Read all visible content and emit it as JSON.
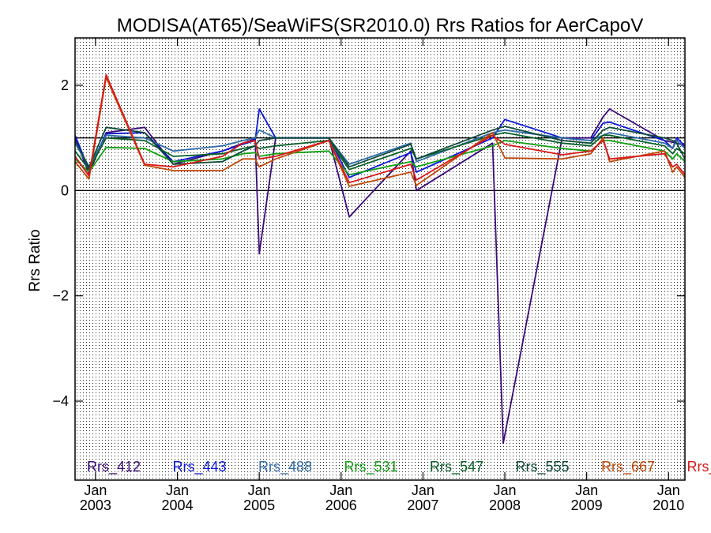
{
  "chart_data": {
    "type": "line",
    "title": "MODISA(AT65)/SeaWiFS(SR2010.0)  Rrs Ratios for AerCapoV",
    "xlabel": "",
    "ylabel": "Rrs Ratio",
    "xlim": [
      2002.75,
      2010.2
    ],
    "ylim": [
      -5.5,
      2.9
    ],
    "ref_lines": [
      0,
      1
    ],
    "grid": "dotted",
    "legend_position": "bottom",
    "x_ticks": [
      {
        "value": 2003.0,
        "label": "Jan\n2003"
      },
      {
        "value": 2004.0,
        "label": "Jan\n2004"
      },
      {
        "value": 2005.0,
        "label": "Jan\n2005"
      },
      {
        "value": 2006.0,
        "label": "Jan\n2006"
      },
      {
        "value": 2007.0,
        "label": "Jan\n2007"
      },
      {
        "value": 2008.0,
        "label": "Jan\n2008"
      },
      {
        "value": 2009.0,
        "label": "Jan\n2009"
      },
      {
        "value": 2010.0,
        "label": "Jan\n2010"
      }
    ],
    "y_ticks": [
      {
        "value": 2,
        "label": "2"
      },
      {
        "value": 0,
        "label": "0"
      },
      {
        "value": -2,
        "label": "−2"
      },
      {
        "value": -4,
        "label": "−4"
      }
    ],
    "series": [
      {
        "name": "Rrs_412",
        "color": "#3b0a78",
        "x": [
          2002.75,
          2002.92,
          2003.13,
          2003.6,
          2003.95,
          2004.55,
          2004.8,
          2004.95,
          2005.0,
          2005.2,
          2005.85,
          2006.1,
          2006.85,
          2006.92,
          2007.85,
          2007.98,
          2008.7,
          2009.05,
          2009.2,
          2009.28,
          2009.95,
          2010.1,
          2010.2
        ],
        "y": [
          1.0,
          0.32,
          1.1,
          1.2,
          0.5,
          0.75,
          0.9,
          0.98,
          -1.2,
          1.0,
          1.0,
          -0.5,
          0.75,
          0.0,
          0.9,
          -4.8,
          1.0,
          1.0,
          1.4,
          1.55,
          0.95,
          0.9,
          0.85
        ]
      },
      {
        "name": "Rrs_443",
        "color": "#0a16d8",
        "x": [
          2002.75,
          2002.92,
          2003.13,
          2003.6,
          2003.95,
          2004.55,
          2004.8,
          2004.95,
          2005.0,
          2005.2,
          2005.85,
          2006.1,
          2006.85,
          2006.92,
          2007.85,
          2008.0,
          2008.7,
          2009.05,
          2009.2,
          2009.28,
          2009.95,
          2010.05,
          2010.1,
          2010.2
        ],
        "y": [
          1.05,
          0.4,
          1.08,
          1.1,
          0.55,
          0.75,
          0.88,
          0.95,
          1.55,
          1.0,
          1.0,
          0.25,
          0.72,
          0.35,
          1.0,
          1.35,
          1.0,
          0.95,
          1.28,
          1.3,
          0.95,
          0.8,
          1.0,
          0.85
        ]
      },
      {
        "name": "Rrs_488",
        "color": "#2f6ca8",
        "x": [
          2002.75,
          2002.92,
          2003.13,
          2003.6,
          2003.95,
          2004.55,
          2004.8,
          2004.95,
          2005.0,
          2005.2,
          2005.85,
          2006.1,
          2006.85,
          2006.92,
          2007.85,
          2008.0,
          2008.7,
          2009.05,
          2009.2,
          2009.28,
          2009.95,
          2010.05,
          2010.1,
          2010.2
        ],
        "y": [
          0.9,
          0.45,
          1.05,
          1.0,
          0.75,
          0.85,
          0.95,
          1.0,
          1.15,
          1.0,
          1.0,
          0.5,
          0.9,
          0.55,
          1.1,
          1.15,
          1.0,
          0.95,
          1.05,
          1.1,
          0.9,
          0.8,
          0.95,
          0.8
        ]
      },
      {
        "name": "Rrs_531",
        "color": "#12a012",
        "x": [
          2002.75,
          2002.92,
          2003.13,
          2003.6,
          2003.95,
          2004.55,
          2004.8,
          2004.95,
          2005.0,
          2005.2,
          2005.85,
          2006.1,
          2006.85,
          2006.92,
          2007.85,
          2008.0,
          2008.7,
          2009.05,
          2009.2,
          2009.28,
          2009.95,
          2010.05,
          2010.1,
          2010.2
        ],
        "y": [
          0.6,
          0.35,
          0.82,
          0.8,
          0.55,
          0.6,
          0.7,
          0.72,
          0.65,
          0.7,
          0.75,
          0.3,
          0.55,
          0.45,
          0.85,
          0.95,
          0.8,
          0.75,
          0.95,
          0.95,
          0.75,
          0.6,
          0.7,
          0.55
        ]
      },
      {
        "name": "Rrs_547",
        "color": "#08602a",
        "x": [
          2002.75,
          2002.92,
          2003.13,
          2003.6,
          2003.95,
          2004.55,
          2004.8,
          2004.95,
          2005.0,
          2005.2,
          2005.85,
          2006.1,
          2006.85,
          2006.92,
          2007.85,
          2008.0,
          2008.7,
          2009.05,
          2009.2,
          2009.28,
          2009.95,
          2010.05,
          2010.1,
          2010.2
        ],
        "y": [
          0.75,
          0.4,
          1.0,
          0.95,
          0.65,
          0.7,
          0.8,
          0.85,
          0.8,
          0.85,
          0.95,
          0.4,
          0.8,
          0.6,
          1.05,
          1.1,
          0.9,
          0.85,
          1.05,
          1.05,
          0.85,
          0.7,
          0.8,
          0.7
        ]
      },
      {
        "name": "Rrs_555",
        "color": "#0e4a3a",
        "x": [
          2002.75,
          2002.92,
          2003.13,
          2003.6,
          2003.95,
          2004.55,
          2004.8,
          2004.95,
          2005.0,
          2005.2,
          2005.85,
          2006.1,
          2006.85,
          2006.92,
          2007.85,
          2008.0,
          2008.7,
          2009.05,
          2009.2,
          2009.28,
          2009.95,
          2010.05,
          2010.1,
          2010.2
        ],
        "y": [
          0.95,
          0.45,
          1.2,
          1.1,
          0.5,
          0.55,
          0.75,
          0.85,
          0.95,
          1.0,
          1.0,
          0.45,
          0.88,
          0.6,
          1.15,
          1.22,
          0.95,
          0.9,
          1.15,
          1.2,
          1.0,
          0.95,
          0.9,
          0.6
        ]
      },
      {
        "name": "Rrs_667",
        "color": "#c04808",
        "x": [
          2002.75,
          2002.92,
          2003.13,
          2003.6,
          2003.95,
          2004.55,
          2004.8,
          2004.95,
          2005.0,
          2005.2,
          2005.85,
          2006.1,
          2006.85,
          2006.92,
          2007.85,
          2008.0,
          2008.7,
          2009.05,
          2009.2,
          2009.28,
          2009.95,
          2010.05,
          2010.1,
          2010.2
        ],
        "y": [
          0.55,
          0.22,
          2.15,
          0.48,
          0.38,
          0.38,
          0.6,
          0.6,
          0.45,
          0.6,
          0.95,
          0.08,
          0.35,
          0.1,
          1.1,
          0.62,
          0.6,
          0.7,
          1.0,
          0.55,
          0.75,
          0.35,
          0.45,
          0.25
        ]
      },
      {
        "name": "Rrs_",
        "color": "#d81818",
        "x": [
          2002.75,
          2002.92,
          2003.13,
          2003.6,
          2003.95,
          2004.55,
          2004.8,
          2004.95,
          2005.0,
          2005.2,
          2005.85,
          2006.1,
          2006.85,
          2006.92,
          2007.85,
          2008.0,
          2008.7,
          2009.05,
          2009.2,
          2009.28,
          2009.95,
          2010.05,
          2010.1,
          2010.2
        ],
        "y": [
          0.65,
          0.28,
          2.2,
          0.5,
          0.45,
          0.65,
          0.9,
          0.95,
          0.6,
          0.65,
          0.95,
          0.15,
          0.5,
          0.2,
          1.05,
          0.88,
          0.68,
          0.75,
          0.95,
          0.6,
          0.7,
          0.45,
          0.5,
          0.3
        ]
      }
    ]
  }
}
